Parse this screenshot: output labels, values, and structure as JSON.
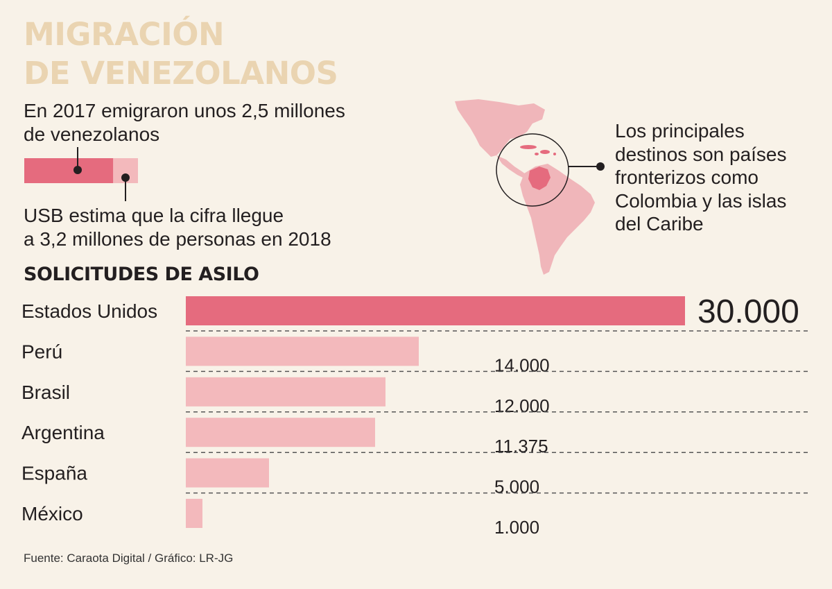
{
  "header": {
    "title_lines": [
      "MIGRACIÓN",
      "DE VENEZOLANOS"
    ]
  },
  "emigration": {
    "text_lines": [
      "En 2017 emigraron unos 2,5 millones",
      "de venezolanos"
    ],
    "estimate_lines": [
      "USB estima que la cifra llegue",
      "a 3,2 millones de personas en 2018"
    ],
    "value_2017_millions": 2.5,
    "value_2018_millions": 3.2
  },
  "map": {
    "caption_lines": [
      "Los principales",
      "destinos son países",
      "fronterizos como",
      "Colombia y las islas",
      "del Caribe"
    ],
    "highlighted_country": "Colombia",
    "icon": "americas-map-icon"
  },
  "colors": {
    "background": "#f8f2e8",
    "accent": "#e56b7e",
    "light": "#f3b9bc",
    "map": "#f0b6ba",
    "title": "#ead4b1",
    "text": "#231f20"
  },
  "chart_data": {
    "type": "bar",
    "orientation": "horizontal",
    "title": "SOLICITUDES DE ASILO",
    "categories": [
      "Estados Unidos",
      "Perú",
      "Brasil",
      "Argentina",
      "España",
      "México"
    ],
    "values": [
      30000,
      14000,
      12000,
      11375,
      5000,
      1000
    ],
    "value_labels": [
      "30.000",
      "14.000",
      "12.000",
      "11.375",
      "5.000",
      "1.000"
    ],
    "xlim": [
      0,
      30000
    ],
    "highlight_index": 0,
    "xlabel": "",
    "ylabel": ""
  },
  "footer": {
    "source": "Fuente: Caraota Digital / Gráfico: LR-JG"
  }
}
